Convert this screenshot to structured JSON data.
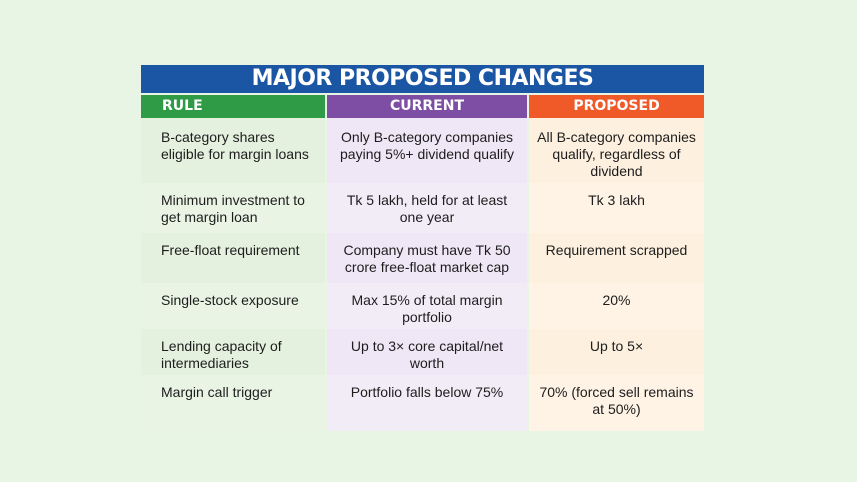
{
  "title": "MAJOR PROPOSED CHANGES",
  "headers": {
    "rule": "RULE",
    "current": "CURRENT",
    "proposed": "PROPOSED"
  },
  "colors": {
    "title_bar": "#1b56a4",
    "rule_header": "#2f9b47",
    "current_header": "#7d4ea4",
    "proposed_header": "#f05a28",
    "background": "#e9f5e4"
  },
  "rows": [
    {
      "rule": "B-category shares eligible for margin loans",
      "current": "Only B-category companies paying 5%+ dividend qualify",
      "proposed": "All B-category companies qualify, regardless of dividend"
    },
    {
      "rule": "Minimum investment to get margin loan",
      "current": "Tk 5 lakh, held for at least one year",
      "proposed": "Tk 3 lakh"
    },
    {
      "rule": "Free-float requirement",
      "current": "Company must have Tk 50 crore free-float market cap",
      "proposed": "Requirement scrapped"
    },
    {
      "rule": "Single-stock exposure",
      "current": "Max 15% of total margin portfolio",
      "proposed": "20%"
    },
    {
      "rule": "Lending capacity of intermediaries",
      "current": "Up to 3× core capital/net worth",
      "proposed": "Up to 5×"
    },
    {
      "rule": "Margin call trigger",
      "current": "Portfolio falls below 75%",
      "proposed": "70% (forced sell remains at 50%)"
    }
  ]
}
